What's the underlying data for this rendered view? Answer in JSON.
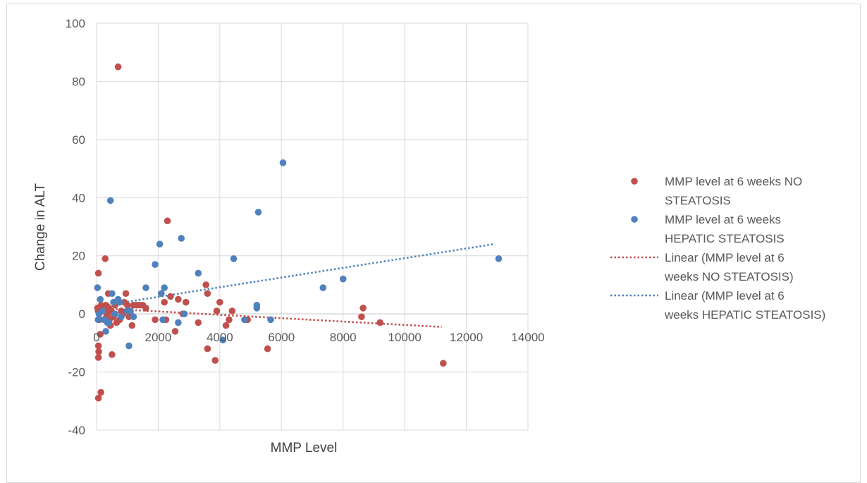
{
  "chart_data": {
    "type": "scatter",
    "xlabel": "MMP  Level",
    "ylabel": "Change in ALT",
    "xlim": [
      0,
      14000
    ],
    "ylim": [
      -40,
      100
    ],
    "x_ticks": [
      "0",
      "2000",
      "4000",
      "6000",
      "8000",
      "10000",
      "12000",
      "14000"
    ],
    "y_ticks": [
      "-40",
      "-20",
      "0",
      "20",
      "40",
      "60",
      "80",
      "100"
    ],
    "grid": "vertical and horizontal gridlines",
    "legend_position": "right",
    "series": [
      {
        "name": "MMP level at 6 weeks NO STEATOSIS",
        "legend_lines": [
          "MMP level at 6 weeks NO",
          "STEATOSIS"
        ],
        "color": "#c0504d",
        "kind": "markers",
        "points": [
          [
            60,
            14
          ],
          [
            30,
            2
          ],
          [
            50,
            1
          ],
          [
            80,
            0
          ],
          [
            100,
            -2
          ],
          [
            60,
            -11
          ],
          [
            70,
            -13
          ],
          [
            60,
            -15
          ],
          [
            60,
            -29
          ],
          [
            140,
            -27
          ],
          [
            120,
            -7
          ],
          [
            150,
            3
          ],
          [
            200,
            2
          ],
          [
            250,
            1
          ],
          [
            280,
            19
          ],
          [
            300,
            3
          ],
          [
            320,
            -1
          ],
          [
            350,
            0
          ],
          [
            380,
            7
          ],
          [
            400,
            2
          ],
          [
            420,
            -2
          ],
          [
            450,
            -4
          ],
          [
            480,
            1
          ],
          [
            500,
            -14
          ],
          [
            550,
            -1
          ],
          [
            600,
            3
          ],
          [
            650,
            -3
          ],
          [
            700,
            85
          ],
          [
            750,
            -2
          ],
          [
            800,
            1
          ],
          [
            850,
            0
          ],
          [
            900,
            4
          ],
          [
            950,
            7
          ],
          [
            1000,
            3
          ],
          [
            1050,
            -1
          ],
          [
            1100,
            0
          ],
          [
            1150,
            -4
          ],
          [
            1200,
            3
          ],
          [
            1300,
            3
          ],
          [
            1400,
            3
          ],
          [
            1500,
            3
          ],
          [
            1600,
            2
          ],
          [
            1900,
            -2
          ],
          [
            2100,
            7
          ],
          [
            2200,
            4
          ],
          [
            2250,
            -2
          ],
          [
            2300,
            32
          ],
          [
            2400,
            6
          ],
          [
            2550,
            -6
          ],
          [
            2650,
            5
          ],
          [
            2800,
            0
          ],
          [
            2900,
            4
          ],
          [
            3300,
            -3
          ],
          [
            3550,
            10
          ],
          [
            3600,
            7
          ],
          [
            3600,
            -12
          ],
          [
            3850,
            -16
          ],
          [
            3900,
            1
          ],
          [
            4000,
            4
          ],
          [
            4200,
            -4
          ],
          [
            4300,
            -2
          ],
          [
            4400,
            1
          ],
          [
            4900,
            -2
          ],
          [
            5550,
            -12
          ],
          [
            8600,
            -1
          ],
          [
            8650,
            2
          ],
          [
            9200,
            -3
          ],
          [
            11250,
            -17
          ]
        ]
      },
      {
        "name": "MMP level at 6 weeks HEPATIC STEATOSIS",
        "legend_lines": [
          "MMP level at 6 weeks",
          "HEPATIC STEATOSIS"
        ],
        "color": "#4f81bd",
        "kind": "markers",
        "points": [
          [
            30,
            9
          ],
          [
            50,
            -2
          ],
          [
            80,
            0
          ],
          [
            120,
            5
          ],
          [
            200,
            1
          ],
          [
            250,
            -2
          ],
          [
            300,
            -6
          ],
          [
            350,
            -3
          ],
          [
            400,
            -3
          ],
          [
            450,
            39
          ],
          [
            500,
            7
          ],
          [
            550,
            4
          ],
          [
            600,
            0
          ],
          [
            700,
            5
          ],
          [
            750,
            4
          ],
          [
            800,
            -1
          ],
          [
            1000,
            1
          ],
          [
            1050,
            -11
          ],
          [
            1100,
            1
          ],
          [
            1200,
            -1
          ],
          [
            1600,
            9
          ],
          [
            1900,
            17
          ],
          [
            2050,
            24
          ],
          [
            2100,
            7
          ],
          [
            2150,
            -2
          ],
          [
            2200,
            9
          ],
          [
            2650,
            -3
          ],
          [
            2750,
            26
          ],
          [
            2850,
            0
          ],
          [
            3300,
            14
          ],
          [
            4100,
            -9
          ],
          [
            4450,
            19
          ],
          [
            4800,
            -2
          ],
          [
            5200,
            3
          ],
          [
            5200,
            2
          ],
          [
            5250,
            35
          ],
          [
            5650,
            -2
          ],
          [
            6050,
            52
          ],
          [
            7350,
            9
          ],
          [
            8000,
            12
          ],
          [
            13050,
            19
          ]
        ]
      },
      {
        "name": "Linear (MMP level at 6 weeks NO STEATOSIS)",
        "legend_lines": [
          "Linear (MMP level at 6",
          "weeks NO STEATOSIS)"
        ],
        "color": "#c0504d",
        "kind": "trendline",
        "points": [
          [
            0,
            2
          ],
          [
            11200,
            -4.5
          ]
        ]
      },
      {
        "name": "Linear (MMP level at 6 weeks HEPATIC STEATOSIS)",
        "legend_lines": [
          "Linear (MMP level at 6",
          "weeks HEPATIC STEATOSIS)"
        ],
        "color": "#4f81bd",
        "kind": "trendline",
        "points": [
          [
            0,
            2.5
          ],
          [
            12900,
            24
          ]
        ]
      }
    ]
  }
}
